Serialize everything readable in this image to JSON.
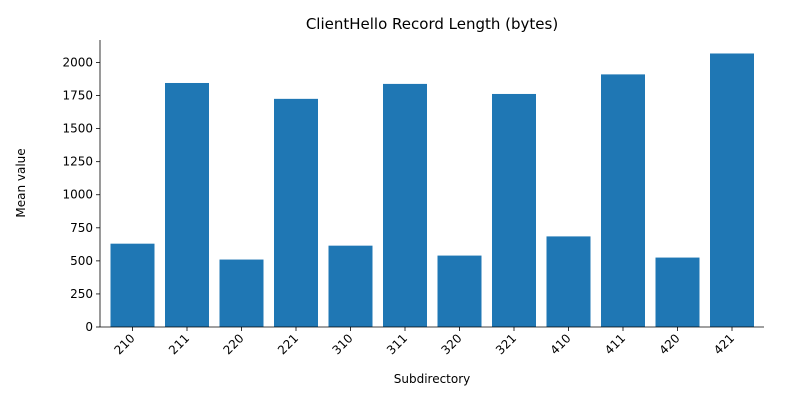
{
  "chart_data": {
    "type": "bar",
    "title": "ClientHello Record Length (bytes)",
    "xlabel": "Subdirectory",
    "ylabel": "Mean value",
    "categories": [
      "210",
      "211",
      "220",
      "221",
      "310",
      "311",
      "320",
      "321",
      "410",
      "411",
      "420",
      "421"
    ],
    "values": [
      630,
      1845,
      510,
      1725,
      615,
      1838,
      540,
      1762,
      685,
      1910,
      525,
      2068
    ],
    "ylim": [
      0,
      2170
    ],
    "yticks": [
      0,
      250,
      500,
      750,
      1000,
      1250,
      1500,
      1750,
      2000
    ],
    "bar_color": "#1f77b4",
    "grid": false
  }
}
